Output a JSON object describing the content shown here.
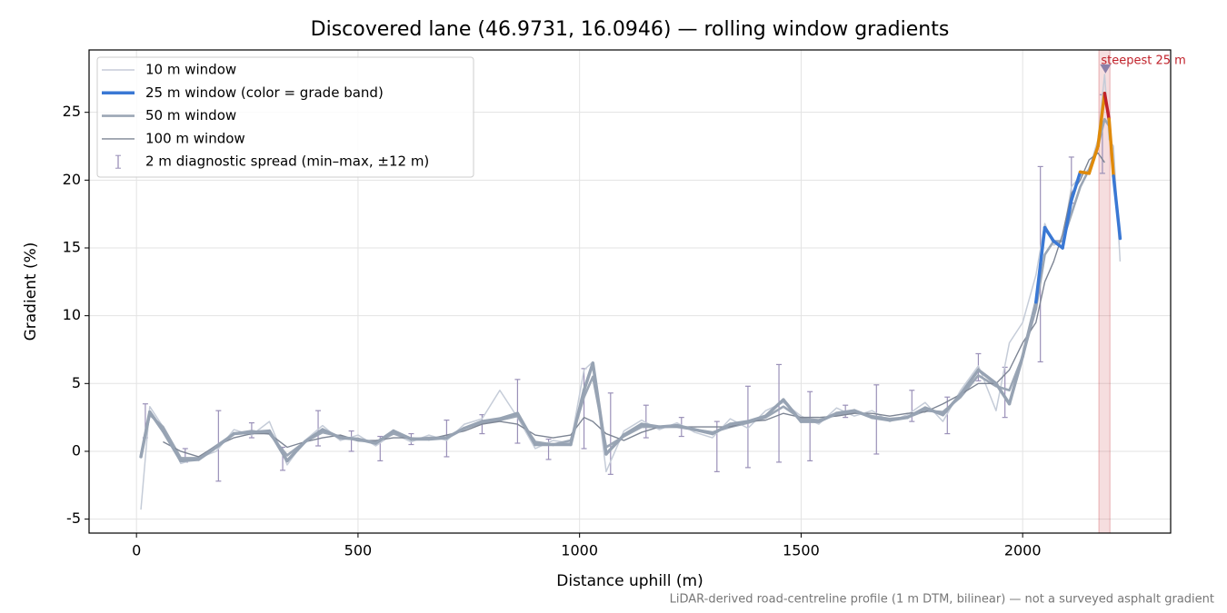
{
  "chart_data": {
    "type": "line",
    "title": "Discovered lane (46.9731, 16.0946) — rolling window gradients",
    "x_label": "Distance uphill (m)",
    "y_label": "Gradient (%)",
    "footnote": "LiDAR-derived road-centreline profile (1 m DTM, bilinear) — not a surveyed asphalt gradient",
    "xlim": [
      -107,
      2334
    ],
    "ylim": [
      -6.03,
      29.6
    ],
    "xticks": [
      0,
      500,
      1000,
      1500,
      2000
    ],
    "yticks": [
      -5,
      0,
      5,
      10,
      15,
      20,
      25
    ],
    "grid": true,
    "legend": "upper left",
    "x": [
      10,
      30,
      60,
      100,
      140,
      180,
      220,
      260,
      300,
      340,
      380,
      420,
      460,
      500,
      540,
      580,
      620,
      660,
      700,
      740,
      780,
      820,
      860,
      900,
      940,
      980,
      1010,
      1030,
      1060,
      1100,
      1140,
      1180,
      1220,
      1260,
      1300,
      1340,
      1380,
      1420,
      1460,
      1500,
      1540,
      1580,
      1620,
      1660,
      1700,
      1740,
      1780,
      1820,
      1860,
      1900,
      1940,
      1970,
      2000,
      2030,
      2050,
      2070,
      2090,
      2110,
      2130,
      2150,
      2170,
      2185,
      2195,
      2205,
      2220
    ],
    "series": [
      {
        "name": "10 m window",
        "color": "#c5ccd8",
        "values": [
          -4.3,
          3.3,
          1.8,
          -0.9,
          -0.5,
          0.0,
          1.6,
          1.2,
          2.2,
          -1.0,
          0.8,
          1.9,
          0.8,
          1.2,
          0.4,
          1.3,
          0.7,
          1.2,
          0.8,
          2.0,
          2.4,
          4.5,
          2.5,
          0.2,
          0.8,
          0.6,
          6.0,
          6.6,
          -1.5,
          1.5,
          2.3,
          1.6,
          2.1,
          1.4,
          1.0,
          2.4,
          1.7,
          3.0,
          3.6,
          2.6,
          2.0,
          3.2,
          2.6,
          3.0,
          2.2,
          2.7,
          3.6,
          2.2,
          4.5,
          6.3,
          3.0,
          8.0,
          9.5,
          13,
          16.8,
          15.2,
          15.5,
          19.5,
          20.3,
          20.8,
          23.0,
          27.8,
          23.0,
          22.5,
          14.0
        ]
      },
      {
        "name": "25 m window (color = grade band)",
        "color": "#3a78d4",
        "values": [
          -0.4,
          2.9,
          1.5,
          -0.7,
          -0.6,
          0.3,
          1.3,
          1.4,
          1.5,
          -0.7,
          0.7,
          1.6,
          1.0,
          0.9,
          0.6,
          1.5,
          0.9,
          0.9,
          1.0,
          1.7,
          2.2,
          2.4,
          2.8,
          0.5,
          0.5,
          0.5,
          4.5,
          6.5,
          -0.2,
          1.2,
          2.0,
          1.8,
          1.9,
          1.6,
          1.3,
          2.0,
          2.2,
          2.6,
          3.8,
          2.2,
          2.2,
          2.8,
          3.0,
          2.5,
          2.3,
          2.5,
          3.2,
          2.7,
          4.2,
          6.0,
          5.0,
          3.5,
          7.0,
          11,
          16.5,
          15.5,
          15.0,
          18.5,
          20.6,
          20.5,
          22.5,
          26.4,
          24.5,
          20.3,
          15.7
        ],
        "point_colors": [
          "#97a3b3",
          "#97a3b3",
          "#97a3b3",
          "#97a3b3",
          "#97a3b3",
          "#97a3b3",
          "#97a3b3",
          "#97a3b3",
          "#97a3b3",
          "#97a3b3",
          "#97a3b3",
          "#97a3b3",
          "#97a3b3",
          "#97a3b3",
          "#97a3b3",
          "#97a3b3",
          "#97a3b3",
          "#97a3b3",
          "#97a3b3",
          "#97a3b3",
          "#97a3b3",
          "#97a3b3",
          "#97a3b3",
          "#97a3b3",
          "#97a3b3",
          "#97a3b3",
          "#97a3b3",
          "#97a3b3",
          "#97a3b3",
          "#97a3b3",
          "#97a3b3",
          "#97a3b3",
          "#97a3b3",
          "#97a3b3",
          "#97a3b3",
          "#97a3b3",
          "#97a3b3",
          "#97a3b3",
          "#97a3b3",
          "#97a3b3",
          "#97a3b3",
          "#97a3b3",
          "#97a3b3",
          "#97a3b3",
          "#97a3b3",
          "#97a3b3",
          "#97a3b3",
          "#97a3b3",
          "#97a3b3",
          "#97a3b3",
          "#97a3b3",
          "#97a3b3",
          "#97a3b3",
          "#3a78d4",
          "#3a78d4",
          "#3a78d4",
          "#3a78d4",
          "#3a78d4",
          "#e08a0a",
          "#e08a0a",
          "#e08a0a",
          "#c0212a",
          "#e08a0a",
          "#3a78d4",
          "#3a78d4"
        ]
      },
      {
        "name": "50 m window",
        "color": "#9ba6b5",
        "values": [
          -0.3,
          2.7,
          1.8,
          -0.5,
          -0.5,
          0.4,
          1.3,
          1.5,
          1.3,
          -0.3,
          0.7,
          1.4,
          1.1,
          0.8,
          0.7,
          1.3,
          0.9,
          1.0,
          1.0,
          1.7,
          2.1,
          2.3,
          2.6,
          0.7,
          0.5,
          0.8,
          4.0,
          5.5,
          0.3,
          1.1,
          1.8,
          1.8,
          1.8,
          1.6,
          1.4,
          1.8,
          2.1,
          2.5,
          3.3,
          2.4,
          2.3,
          2.7,
          2.9,
          2.6,
          2.4,
          2.5,
          3.0,
          2.9,
          4.0,
          5.6,
          4.8,
          4.5,
          7.0,
          10.5,
          14.5,
          15.5,
          15.5,
          17.5,
          19.5,
          20.8,
          22.5,
          24.5,
          24.0,
          null,
          null
        ]
      },
      {
        "name": "100 m window",
        "color": "#7d8594",
        "values": [
          null,
          null,
          0.7,
          0.0,
          -0.4,
          0.4,
          1.0,
          1.3,
          1.3,
          0.3,
          0.7,
          1.0,
          1.2,
          0.8,
          0.8,
          1.0,
          1.0,
          0.9,
          1.2,
          1.5,
          2.0,
          2.2,
          2.0,
          1.2,
          1.0,
          1.2,
          2.5,
          2.2,
          1.3,
          0.8,
          1.4,
          1.8,
          1.8,
          1.8,
          1.8,
          1.8,
          2.2,
          2.3,
          2.8,
          2.5,
          2.5,
          2.6,
          2.8,
          2.8,
          2.6,
          2.8,
          2.9,
          3.5,
          4.2,
          5.0,
          5.0,
          6.0,
          8.0,
          9.5,
          12.5,
          14.0,
          16.0,
          19.0,
          20.0,
          21.5,
          22.0,
          21.3,
          null,
          null,
          null
        ]
      }
    ],
    "errorbars": {
      "name": "2 m diagnostic spread (min–max, ±12 m)",
      "color": "#9a90b8",
      "x": [
        20,
        110,
        185,
        260,
        330,
        410,
        485,
        550,
        620,
        700,
        780,
        860,
        930,
        1010,
        1070,
        1150,
        1230,
        1310,
        1380,
        1450,
        1520,
        1600,
        1670,
        1750,
        1830,
        1900,
        1960,
        2040,
        2110,
        2180
      ],
      "low": [
        1.0,
        -0.8,
        -2.2,
        1.0,
        -1.4,
        0.4,
        0.0,
        -0.7,
        0.5,
        -0.4,
        1.3,
        0.6,
        -0.6,
        0.2,
        -1.7,
        1.0,
        1.1,
        -1.5,
        -1.2,
        -0.8,
        -0.7,
        2.5,
        -0.2,
        2.2,
        1.3,
        5.2,
        2.5,
        6.6,
        18.3,
        20.5
      ],
      "high": [
        3.5,
        0.2,
        3.0,
        2.1,
        0.3,
        3.0,
        1.5,
        1.1,
        1.3,
        2.3,
        2.7,
        5.3,
        0.9,
        6.1,
        4.3,
        3.4,
        2.5,
        2.2,
        4.8,
        6.4,
        4.4,
        3.4,
        4.9,
        4.5,
        4.0,
        7.2,
        6.2,
        21.0,
        21.7,
        26.3
      ]
    },
    "annotation": {
      "text": "steepest 25 m",
      "x": 2187,
      "y": 28.2,
      "span": [
        2172,
        2197
      ],
      "color": "#c0212a"
    }
  }
}
